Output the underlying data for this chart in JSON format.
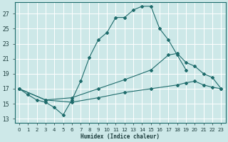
{
  "xlabel": "Humidex (Indice chaleur)",
  "bg_color": "#cde8e8",
  "grid_color": "#b0d4d4",
  "line_color": "#1e6b6b",
  "xlim": [
    -0.5,
    23.5
  ],
  "ylim": [
    12.5,
    28.5
  ],
  "xticks": [
    0,
    1,
    2,
    3,
    4,
    5,
    6,
    7,
    8,
    9,
    10,
    11,
    12,
    13,
    14,
    15,
    16,
    17,
    18,
    19,
    20,
    21,
    22,
    23
  ],
  "yticks": [
    13,
    15,
    17,
    19,
    21,
    23,
    25,
    27
  ],
  "series1": [
    [
      0,
      17
    ],
    [
      1,
      16.2
    ],
    [
      2,
      15.5
    ],
    [
      3,
      15.2
    ],
    [
      4,
      14.5
    ],
    [
      5,
      13.5
    ],
    [
      6,
      15.5
    ],
    [
      7,
      18.0
    ],
    [
      8,
      21.2
    ],
    [
      9,
      23.5
    ],
    [
      10,
      24.5
    ],
    [
      11,
      26.5
    ],
    [
      12,
      26.5
    ],
    [
      13,
      27.5
    ],
    [
      14,
      28.0
    ],
    [
      15,
      28.0
    ],
    [
      16,
      25.0
    ],
    [
      17,
      23.5
    ],
    [
      18,
      21.5
    ],
    [
      19,
      19.5
    ]
  ],
  "series2": [
    [
      0,
      17
    ],
    [
      3,
      15.5
    ],
    [
      6,
      15.8
    ],
    [
      9,
      17.0
    ],
    [
      12,
      18.2
    ],
    [
      15,
      19.5
    ],
    [
      17,
      21.5
    ],
    [
      18,
      21.7
    ],
    [
      19,
      20.5
    ],
    [
      20,
      20.0
    ],
    [
      21,
      19.0
    ],
    [
      22,
      18.5
    ],
    [
      23,
      17.0
    ]
  ],
  "series3": [
    [
      0,
      17
    ],
    [
      3,
      15.5
    ],
    [
      6,
      15.2
    ],
    [
      9,
      15.8
    ],
    [
      12,
      16.5
    ],
    [
      15,
      17.0
    ],
    [
      18,
      17.5
    ],
    [
      19,
      17.8
    ],
    [
      20,
      18.0
    ],
    [
      21,
      17.5
    ],
    [
      22,
      17.2
    ],
    [
      23,
      17.0
    ]
  ]
}
